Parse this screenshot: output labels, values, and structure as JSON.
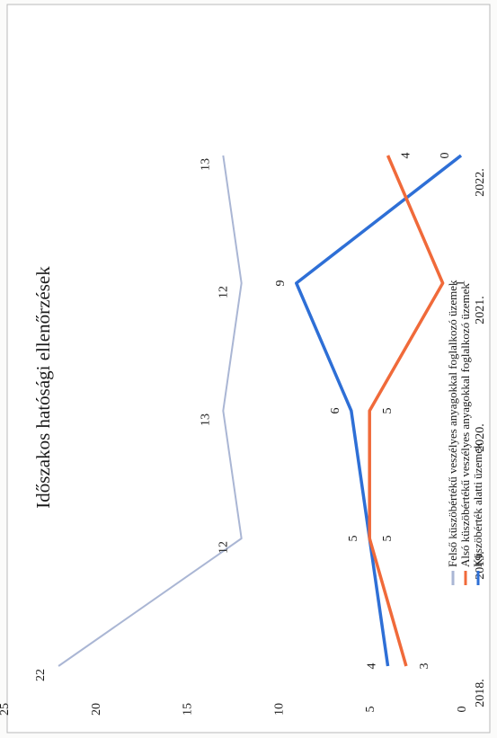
{
  "chart_data": {
    "type": "line",
    "title": "Időszakos hatósági ellenőrzések",
    "categories": [
      "2018.",
      "2019.",
      "2020.",
      "2021.",
      "2022."
    ],
    "ylim": [
      0,
      25
    ],
    "yticks": [
      0,
      5,
      10,
      15,
      20,
      25
    ],
    "grid": false,
    "legend_position": "bottom",
    "series": [
      {
        "name": "Küszöbérték alatti üzemek",
        "color": "#2e6fd6",
        "values": [
          4,
          5,
          6,
          9,
          0
        ]
      },
      {
        "name": "Alsó küszöbértékű veszélyes anyagokkal foglalkozó üzemek",
        "color": "#f06a3a",
        "values": [
          3,
          5,
          5,
          1,
          4
        ]
      },
      {
        "name": "Felső küszöbértékű veszélyes anyagokkal foglalkozó üzemek",
        "color": "#aab6d4",
        "values": [
          22,
          12,
          13,
          12,
          13
        ]
      }
    ]
  }
}
